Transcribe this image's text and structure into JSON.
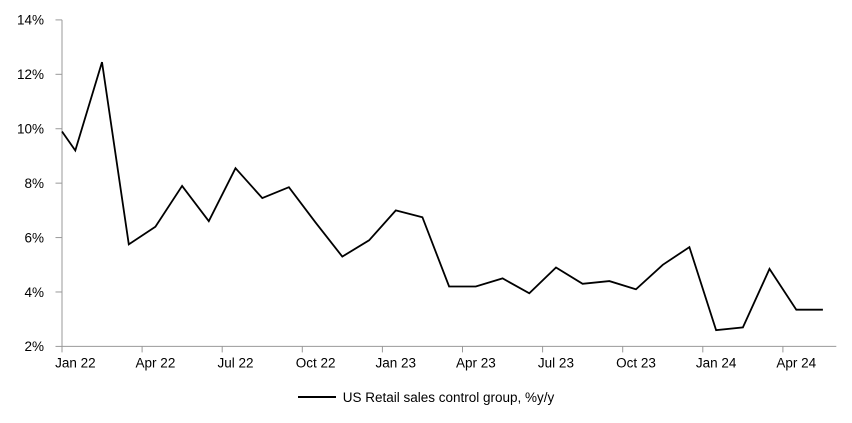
{
  "chart": {
    "background_color": "#ffffff",
    "line_color": "#000000",
    "axis_color": "#999999",
    "text_color": "#000000"
  },
  "chart_data": {
    "type": "line",
    "title": "",
    "grid": false,
    "legend": {
      "position": "bottom",
      "entries": [
        "US Retail sales control group, %y/y"
      ]
    },
    "x": [
      "Jan 22",
      "Feb 22",
      "Mar 22",
      "Apr 22",
      "May 22",
      "Jun 22",
      "Jul 22",
      "Aug 22",
      "Sep 22",
      "Oct 22",
      "Nov 22",
      "Dec 22",
      "Jan 23",
      "Feb 23",
      "Mar 23",
      "Apr 23",
      "May 23",
      "Jun 23",
      "Jul 23",
      "Aug 23",
      "Sep 23",
      "Oct 23",
      "Nov 23",
      "Dec 23",
      "Jan 24",
      "Feb 24",
      "Mar 24",
      "Apr 24",
      "May 24"
    ],
    "series": [
      {
        "name": "US Retail sales control group, %y/y",
        "color": "#000000",
        "lead_in_value_at_axis": 9.9,
        "values": [
          9.2,
          12.45,
          5.75,
          6.4,
          7.9,
          6.6,
          8.55,
          7.45,
          7.85,
          6.55,
          5.3,
          5.9,
          7.0,
          6.75,
          4.2,
          4.2,
          4.5,
          3.95,
          4.9,
          4.3,
          4.4,
          4.1,
          5.0,
          5.65,
          2.6,
          2.7,
          4.85,
          3.35,
          3.35
        ]
      }
    ],
    "x_axis": {
      "tick_labels": [
        "Jan 22",
        "Apr 22",
        "Jul 22",
        "Oct 22",
        "Jan 23",
        "Apr 23",
        "Jul 23",
        "Oct 23",
        "Jan 24",
        "Apr 24"
      ],
      "months_per_tick": 3
    },
    "y_axis": {
      "min": 2,
      "max": 14,
      "step": 2,
      "unit": "%",
      "tick_labels": [
        "2%",
        "4%",
        "6%",
        "8%",
        "10%",
        "12%",
        "14%"
      ]
    }
  }
}
